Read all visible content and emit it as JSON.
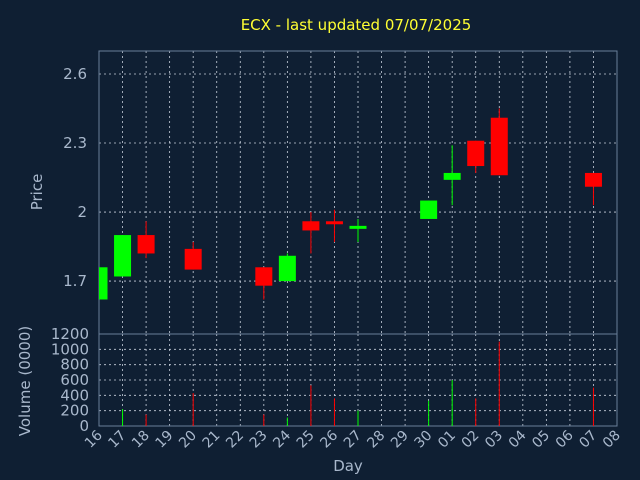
{
  "chart_data": {
    "type": "candlestick",
    "title": "ECX - last updated 07/07/2025",
    "ylabel_price": "Price",
    "ylabel_volume": "Volume (0000)",
    "xlabel": "Day",
    "price_ticks": [
      1.7,
      2,
      2.3,
      2.6
    ],
    "price_tick_labels": [
      "1.7",
      "2",
      "2.3",
      "2.6"
    ],
    "price_ylim": [
      1.47,
      2.7
    ],
    "volume_ticks": [
      0,
      200,
      400,
      600,
      800,
      1000,
      1200
    ],
    "volume_ylim": [
      0,
      1200
    ],
    "x_labels": [
      "16",
      "17",
      "18",
      "19",
      "20",
      "21",
      "22",
      "23",
      "24",
      "25",
      "26",
      "27",
      "28",
      "29",
      "30",
      "01",
      "02",
      "03",
      "04",
      "05",
      "06",
      "07",
      "08"
    ],
    "candles": [
      {
        "x": "16",
        "open": 1.62,
        "high": 1.76,
        "low": 1.62,
        "close": 1.76
      },
      {
        "x": "17",
        "open": 1.72,
        "high": 1.9,
        "low": 1.72,
        "close": 1.9
      },
      {
        "x": "18",
        "open": 1.9,
        "high": 1.96,
        "low": 1.8,
        "close": 1.82
      },
      {
        "x": "20",
        "open": 1.84,
        "high": 1.87,
        "low": 1.75,
        "close": 1.75
      },
      {
        "x": "23",
        "open": 1.76,
        "high": 1.76,
        "low": 1.62,
        "close": 1.68
      },
      {
        "x": "24",
        "open": 1.7,
        "high": 1.82,
        "low": 1.7,
        "close": 1.81
      },
      {
        "x": "25",
        "open": 1.96,
        "high": 2.0,
        "low": 1.82,
        "close": 1.92
      },
      {
        "x": "26",
        "open": 1.96,
        "high": 2.01,
        "low": 1.87,
        "close": 1.95
      },
      {
        "x": "27",
        "open": 1.93,
        "high": 1.97,
        "low": 1.87,
        "close": 1.94
      },
      {
        "x": "30",
        "open": 1.97,
        "high": 2.05,
        "low": 1.97,
        "close": 2.05
      },
      {
        "x": "01",
        "open": 2.14,
        "high": 2.29,
        "low": 2.03,
        "close": 2.17
      },
      {
        "x": "02",
        "open": 2.31,
        "high": 2.31,
        "low": 2.17,
        "close": 2.2
      },
      {
        "x": "03",
        "open": 2.41,
        "high": 2.45,
        "low": 2.16,
        "close": 2.16
      },
      {
        "x": "07",
        "open": 2.17,
        "high": 2.17,
        "low": 2.03,
        "close": 2.11
      }
    ],
    "volumes": [
      {
        "x": "17",
        "value": 220,
        "direction": "up"
      },
      {
        "x": "18",
        "value": 150,
        "direction": "down"
      },
      {
        "x": "20",
        "value": 430,
        "direction": "down"
      },
      {
        "x": "23",
        "value": 150,
        "direction": "down"
      },
      {
        "x": "24",
        "value": 110,
        "direction": "up"
      },
      {
        "x": "25",
        "value": 530,
        "direction": "down"
      },
      {
        "x": "26",
        "value": 360,
        "direction": "down"
      },
      {
        "x": "27",
        "value": 200,
        "direction": "up"
      },
      {
        "x": "30",
        "value": 330,
        "direction": "up"
      },
      {
        "x": "01",
        "value": 600,
        "direction": "up"
      },
      {
        "x": "02",
        "value": 360,
        "direction": "down"
      },
      {
        "x": "03",
        "value": 1100,
        "direction": "down"
      },
      {
        "x": "07",
        "value": 500,
        "direction": "down"
      }
    ],
    "colors": {
      "background": "#0f1f33",
      "up": "#00ff00",
      "down": "#ff0000",
      "title": "#ffff33",
      "text": "#a9b8cc",
      "frame": "#6a7f9a",
      "grid": "#c8d0dc"
    },
    "grid": true
  }
}
